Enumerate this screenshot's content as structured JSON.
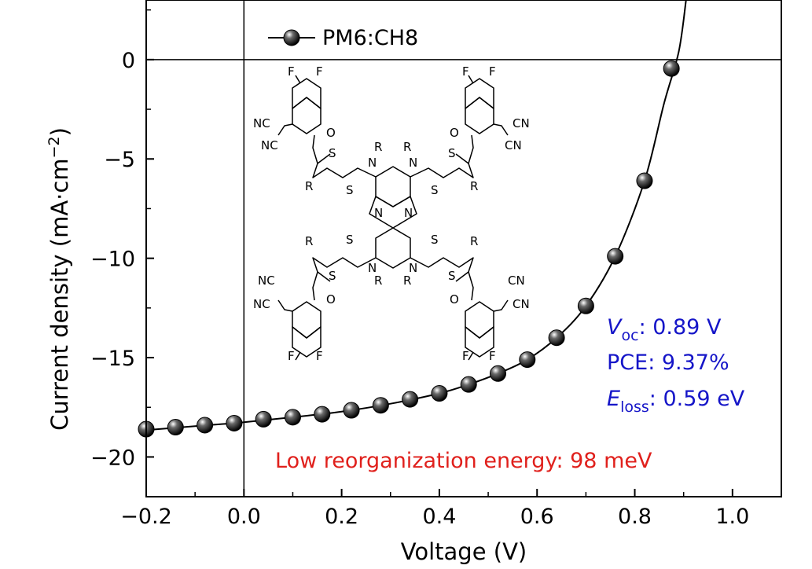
{
  "chart_data": {
    "type": "line",
    "xlabel": "Voltage (V)",
    "ylabel": "Current density (mA·cm",
    "ylabel_sup": "−2",
    "ylabel_close": ")",
    "xlim": [
      -0.2,
      1.1
    ],
    "ylim": [
      -22,
      3
    ],
    "x_ticks": [
      -0.2,
      0.0,
      0.2,
      0.4,
      0.6,
      0.8,
      1.0
    ],
    "x_tick_labels": [
      "−0.2",
      "0.0",
      "0.2",
      "0.4",
      "0.6",
      "0.8",
      "1.0"
    ],
    "y_ticks": [
      0,
      -5,
      -10,
      -15,
      -20
    ],
    "y_tick_labels": [
      "0",
      "−5",
      "−10",
      "−15",
      "−20"
    ],
    "series": [
      {
        "name": "PM6:CH8",
        "marker": "sphere",
        "color": "#000000",
        "x": [
          -0.2,
          -0.14,
          -0.08,
          -0.02,
          0.04,
          0.1,
          0.16,
          0.22,
          0.28,
          0.34,
          0.4,
          0.46,
          0.52,
          0.58,
          0.64,
          0.7,
          0.76,
          0.82,
          0.875
        ],
        "y": [
          -18.6,
          -18.5,
          -18.4,
          -18.3,
          -18.1,
          -18.0,
          -17.85,
          -17.65,
          -17.4,
          -17.1,
          -16.8,
          -16.35,
          -15.8,
          -15.1,
          -14.0,
          -12.4,
          -9.9,
          -6.1,
          -0.45
        ]
      }
    ],
    "fit_curve": {
      "x": [
        -0.2,
        -0.1,
        0.0,
        0.1,
        0.2,
        0.3,
        0.4,
        0.46,
        0.52,
        0.58,
        0.64,
        0.7,
        0.76,
        0.82,
        0.86,
        0.89,
        0.905
      ],
      "y": [
        -18.65,
        -18.45,
        -18.25,
        -18.0,
        -17.72,
        -17.32,
        -16.8,
        -16.35,
        -15.8,
        -15.1,
        -14.0,
        -12.4,
        -9.9,
        -6.1,
        -2.2,
        0.4,
        3.0
      ]
    },
    "legend": {
      "position": "top-left",
      "label": "PM6:CH8"
    },
    "reference_lines": {
      "x": 0.0,
      "y": 0
    },
    "annotations": {
      "voc_symbol": "V",
      "voc_sub": "oc",
      "voc_value": ": 0.89 V",
      "pce": "PCE: 9.37%",
      "eloss_symbol": "E",
      "eloss_sub": "loss",
      "eloss_value": ": 0.59 eV",
      "reorg": "Low reorganization energy: 98 meV"
    },
    "structure_labels": {
      "F": "F",
      "NC": "NC",
      "CN": "CN",
      "O": "O",
      "S": "S",
      "R": "R",
      "N": "N"
    }
  }
}
